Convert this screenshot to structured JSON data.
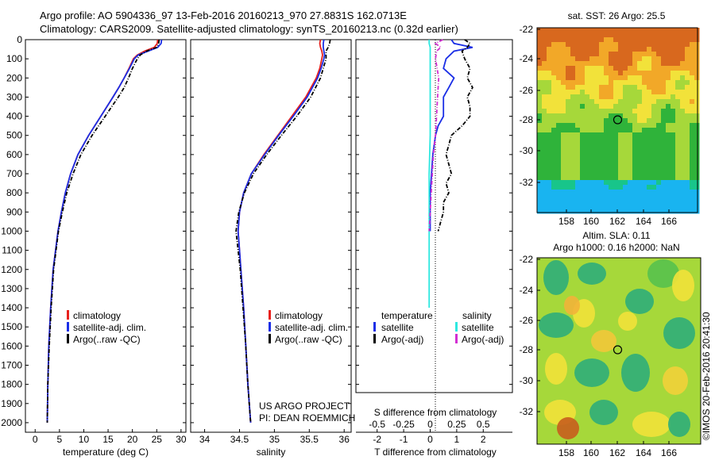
{
  "header": {
    "line1": "Argo profile: AO 5904336_97 13-Feb-2016 20160213_970 27.8831S 162.0713E",
    "line2": "Climatology: CARS2009. Satellite-adjusted climatology: synTS_20160213.nc (0.32d earlier)"
  },
  "depth_ticks": [
    "0",
    "100",
    "200",
    "300",
    "400",
    "500",
    "600",
    "700",
    "800",
    "900",
    "1000",
    "1100",
    "1200",
    "1300",
    "1400",
    "1500",
    "1600",
    "1700",
    "1800",
    "1900",
    "2000"
  ],
  "temperature_panel": {
    "xlabel": "temperature (deg C)",
    "xticks": [
      "0",
      "5",
      "10",
      "15",
      "20",
      "25",
      "30"
    ],
    "legend": [
      "climatology",
      "satellite-adj. clim.",
      "Argo(..raw -QC)"
    ]
  },
  "salinity_panel": {
    "xlabel": "salinity",
    "xticks": [
      "34",
      "34.5",
      "35",
      "35.5",
      "36"
    ],
    "legend": [
      "climatology",
      "satellite-adj. clim.",
      "Argo(..raw -QC)"
    ],
    "credit1": "US ARGO PROJECT",
    "credit2": "PI: DEAN ROEMMICH"
  },
  "difference_panel": {
    "top_label": "S difference from climatology",
    "xlabel": "T difference from climatology",
    "s_ticks": [
      "-0.5",
      "-0.25",
      "0",
      "0.25",
      "0.5"
    ],
    "t_ticks": [
      "-2",
      "-1",
      "0",
      "1",
      "2"
    ],
    "legend_temp_title": "temperature",
    "legend_sal_title": "salinity",
    "legend_sat": "satellite",
    "legend_argo": "Argo(-adj)"
  },
  "sst_map": {
    "title": "sat. SST: 26 Argo: 25.5",
    "lat_ticks": [
      "-22",
      "-24",
      "-26",
      "-28",
      "-30",
      "-32"
    ],
    "lon_ticks": [
      "158",
      "160",
      "162",
      "164",
      "166"
    ]
  },
  "sla_map": {
    "title1": "Altim. SLA: 0.11",
    "title2": "Argo h1000: 0.16 h2000: NaN",
    "lat_ticks": [
      "-22",
      "-24",
      "-26",
      "-28",
      "-30",
      "-32"
    ],
    "lon_ticks": [
      "158",
      "160",
      "162",
      "164",
      "166"
    ]
  },
  "watermark": "©IMOS 20-Feb-2016 20:41:30",
  "colors": {
    "climatology": "#e8211d",
    "satellite": "#1a2ee6",
    "argo": "#000000",
    "sal_satellite": "#2ee8e0",
    "sal_argo": "#d22ed2"
  },
  "chart_data": [
    {
      "type": "line",
      "title": "temperature profile",
      "xlabel": "temperature (deg C)",
      "ylabel": "depth",
      "xlim": [
        -2,
        31
      ],
      "ylim": [
        2050,
        0
      ],
      "depth": [
        0,
        20,
        40,
        60,
        80,
        100,
        150,
        200,
        250,
        300,
        400,
        500,
        600,
        700,
        800,
        900,
        1000,
        1200,
        1400,
        1600,
        1800,
        2000
      ],
      "series": [
        {
          "name": "climatology",
          "values": [
            25.2,
            25.1,
            24.5,
            22.5,
            21.0,
            20.2,
            19.3,
            18.3,
            17.2,
            16.0,
            13.5,
            11.0,
            8.8,
            7.3,
            6.2,
            5.4,
            4.7,
            3.7,
            3.2,
            2.8,
            2.6,
            2.5
          ]
        },
        {
          "name": "satellite-adj. clim.",
          "values": [
            26.0,
            25.9,
            25.2,
            23.2,
            21.2,
            20.4,
            19.4,
            18.3,
            17.2,
            16.0,
            13.5,
            11.0,
            8.8,
            7.3,
            6.2,
            5.4,
            4.7,
            3.7,
            3.2,
            2.8,
            2.6,
            2.5
          ]
        },
        {
          "name": "Argo(..raw -QC)",
          "values": [
            25.5,
            25.4,
            25.0,
            22.9,
            21.6,
            21.0,
            20.0,
            19.2,
            18.3,
            17.1,
            14.4,
            11.7,
            9.4,
            7.8,
            6.5,
            5.6,
            4.8,
            3.8,
            3.3,
            2.9,
            2.6,
            2.5
          ]
        }
      ]
    },
    {
      "type": "line",
      "title": "salinity profile",
      "xlabel": "salinity",
      "ylabel": "depth",
      "xlim": [
        33.8,
        36.1
      ],
      "ylim": [
        2050,
        0
      ],
      "depth": [
        0,
        20,
        40,
        60,
        80,
        100,
        150,
        200,
        300,
        400,
        500,
        600,
        700,
        800,
        900,
        1000,
        1100,
        1200,
        1400,
        1600,
        1800,
        2000
      ],
      "series": [
        {
          "name": "climatology",
          "values": [
            35.66,
            35.65,
            35.66,
            35.68,
            35.69,
            35.68,
            35.65,
            35.6,
            35.45,
            35.25,
            35.05,
            34.85,
            34.67,
            34.56,
            34.5,
            34.48,
            34.5,
            34.52,
            34.56,
            34.59,
            34.62,
            34.66
          ]
        },
        {
          "name": "satellite-adj. clim.",
          "values": [
            35.71,
            35.7,
            35.7,
            35.71,
            35.72,
            35.71,
            35.67,
            35.62,
            35.47,
            35.27,
            35.06,
            34.86,
            34.67,
            34.56,
            34.5,
            34.48,
            34.5,
            34.52,
            34.56,
            34.59,
            34.62,
            34.66
          ]
        },
        {
          "name": "Argo(..raw -QC)",
          "values": [
            35.8,
            35.79,
            35.77,
            35.74,
            35.74,
            35.74,
            35.7,
            35.66,
            35.52,
            35.32,
            35.1,
            34.89,
            34.7,
            34.57,
            34.49,
            34.45,
            34.48,
            34.51,
            34.55,
            34.59,
            34.62,
            34.66
          ]
        }
      ]
    },
    {
      "type": "line",
      "title": "difference from climatology",
      "xlabel": "T difference from climatology",
      "x2label": "S difference from climatology",
      "xlim": [
        -2.8,
        3.1
      ],
      "x2lim": [
        -0.7,
        0.775
      ],
      "ylim": [
        2050,
        0
      ],
      "series": [
        {
          "name": "temperature satellite",
          "axis": "T",
          "depth": [
            0,
            20,
            40,
            60,
            100,
            150,
            200,
            250,
            300,
            350,
            400,
            450,
            500,
            600,
            700,
            800,
            900,
            1000
          ],
          "values": [
            0.8,
            0.9,
            1.6,
            0.9,
            0.6,
            0.5,
            0.9,
            0.7,
            0.5,
            0.5,
            0.5,
            0.3,
            0.2,
            0.1,
            0.05,
            0.0,
            0.0,
            0.0
          ]
        },
        {
          "name": "temperature Argo(-adj)",
          "axis": "T",
          "depth": [
            0,
            20,
            40,
            60,
            100,
            150,
            200,
            250,
            300,
            350,
            400,
            450,
            500,
            550,
            600,
            650,
            700,
            750,
            800,
            850,
            900,
            950,
            1000
          ],
          "values": [
            1.3,
            1.5,
            1.4,
            1.2,
            1.3,
            1.5,
            1.4,
            1.6,
            1.4,
            1.5,
            1.5,
            1.2,
            0.8,
            0.7,
            0.6,
            0.7,
            0.8,
            0.6,
            0.7,
            0.5,
            0.5,
            0.4,
            0.3
          ]
        },
        {
          "name": "salinity satellite",
          "axis": "S",
          "depth": [
            0,
            20,
            40,
            80,
            150,
            300,
            500,
            700,
            900,
            1100,
            1300,
            1400
          ],
          "values": [
            -0.01,
            -0.01,
            0.0,
            0.0,
            0.0,
            0.0,
            0.0,
            -0.01,
            -0.01,
            -0.01,
            -0.01,
            -0.01
          ]
        },
        {
          "name": "salinity Argo(-adj)",
          "axis": "S",
          "depth": [
            0,
            20,
            40,
            60,
            100,
            200,
            300,
            400,
            500,
            600,
            700,
            800,
            900,
            1000
          ],
          "values": [
            0.12,
            0.05,
            0.1,
            0.06,
            0.05,
            0.08,
            0.07,
            0.06,
            0.05,
            0.03,
            0.02,
            0.01,
            0.0,
            -0.01
          ]
        }
      ]
    }
  ]
}
